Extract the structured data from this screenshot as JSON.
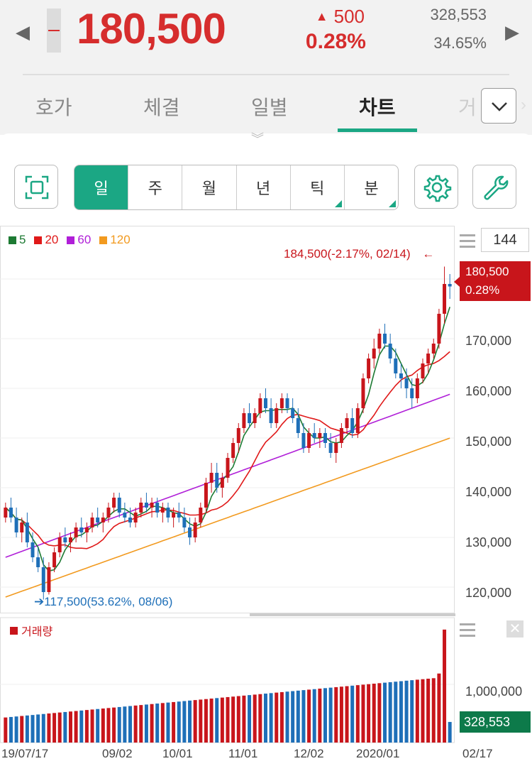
{
  "header": {
    "prev_arrow": "◀",
    "next_arrow": "▶",
    "price": "180,500",
    "change_arrow": "▲",
    "change": "500",
    "change_pct": "0.28%",
    "volume": "328,553",
    "volume_pct": "34.65%"
  },
  "tabs": [
    {
      "label": "호가"
    },
    {
      "label": "체결"
    },
    {
      "label": "일별"
    },
    {
      "label": "차트"
    },
    {
      "label": "거"
    }
  ],
  "active_tab": "차트",
  "toolbar": {
    "periods": [
      "일",
      "주",
      "월",
      "년",
      "틱",
      "분"
    ],
    "active_period": "일"
  },
  "legend": [
    {
      "label": "5",
      "color": "#1d7a33"
    },
    {
      "label": "20",
      "color": "#e01919"
    },
    {
      "label": "60",
      "color": "#b01fd8"
    },
    {
      "label": "120",
      "color": "#f29a1f"
    }
  ],
  "period_count": "144",
  "current_tag": {
    "price": "180,500",
    "pct": "0.28%"
  },
  "high_annotation": "184,500(-2.17%, 02/14)",
  "high_arrow": "←",
  "low_annotation": "117,500(53.62%, 08/06)",
  "low_arrow": "➔",
  "y_axis": [
    "170,000",
    "160,000",
    "150,000",
    "140,000",
    "130,000",
    "120,000"
  ],
  "volume_panel": {
    "legend": "거래량",
    "axis_label": "1,000,000",
    "tag": "328,553",
    "close": "✕"
  },
  "x_axis": [
    "19/07/17",
    "09/02",
    "10/01",
    "11/01",
    "12/02",
    "2020/01",
    "02/17"
  ],
  "colors": {
    "up": "#c8151b",
    "down": "#1e6fb8",
    "accent": "#1ba784",
    "volume_tag": "#0d7a4a"
  },
  "chart_data": {
    "type": "candlestick",
    "ylim": [
      115000,
      187000
    ],
    "candles": [
      [
        134000,
        137000,
        133000,
        136000
      ],
      [
        136000,
        138000,
        133000,
        134000
      ],
      [
        134000,
        136000,
        130000,
        131000
      ],
      [
        131000,
        134000,
        129000,
        133000
      ],
      [
        133000,
        135000,
        128000,
        129000
      ],
      [
        129000,
        131000,
        125000,
        126000
      ],
      [
        126000,
        128000,
        123000,
        124000
      ],
      [
        124000,
        126000,
        117500,
        119000
      ],
      [
        119000,
        125000,
        118500,
        124000
      ],
      [
        124000,
        128000,
        123000,
        127000
      ],
      [
        127000,
        131000,
        126000,
        130000
      ],
      [
        130000,
        132000,
        128000,
        129000
      ],
      [
        129000,
        131000,
        127000,
        130000
      ],
      [
        130000,
        133000,
        129000,
        132000
      ],
      [
        132000,
        134000,
        130000,
        131000
      ],
      [
        131000,
        133000,
        129000,
        132000
      ],
      [
        132000,
        135000,
        131000,
        134000
      ],
      [
        134000,
        136000,
        132000,
        133000
      ],
      [
        133000,
        135000,
        131000,
        134000
      ],
      [
        134000,
        137000,
        133000,
        136000
      ],
      [
        136000,
        139000,
        135000,
        138000
      ],
      [
        138000,
        139000,
        134000,
        135000
      ],
      [
        135000,
        137000,
        133000,
        134000
      ],
      [
        134000,
        136000,
        132000,
        133000
      ],
      [
        133000,
        136000,
        132000,
        135000
      ],
      [
        135000,
        138000,
        134000,
        137000
      ],
      [
        137000,
        139000,
        135000,
        136000
      ],
      [
        136000,
        138000,
        134000,
        137000
      ],
      [
        137000,
        138000,
        134000,
        135000
      ],
      [
        135000,
        137000,
        133000,
        136000
      ],
      [
        136000,
        137000,
        133000,
        134000
      ],
      [
        134000,
        136000,
        132000,
        135000
      ],
      [
        135000,
        137000,
        133000,
        134000
      ],
      [
        134000,
        136000,
        131000,
        132000
      ],
      [
        132000,
        134000,
        128500,
        130000
      ],
      [
        130000,
        134000,
        129000,
        133000
      ],
      [
        133000,
        137000,
        132000,
        136000
      ],
      [
        136000,
        142000,
        135000,
        141000
      ],
      [
        141000,
        145000,
        139000,
        143000
      ],
      [
        143000,
        145000,
        139000,
        140000
      ],
      [
        140000,
        143000,
        138000,
        142000
      ],
      [
        142000,
        147000,
        141000,
        146000
      ],
      [
        146000,
        150000,
        145000,
        149000
      ],
      [
        149000,
        153000,
        147000,
        152000
      ],
      [
        152000,
        156000,
        151000,
        155000
      ],
      [
        155000,
        157000,
        152000,
        153000
      ],
      [
        153000,
        156000,
        152000,
        155000
      ],
      [
        155000,
        159000,
        154000,
        158000
      ],
      [
        158000,
        160000,
        155000,
        156000
      ],
      [
        156000,
        158000,
        152000,
        153000
      ],
      [
        153000,
        157000,
        152000,
        156000
      ],
      [
        156000,
        159000,
        155000,
        158000
      ],
      [
        158000,
        159000,
        155000,
        156000
      ],
      [
        156000,
        158000,
        153000,
        154000
      ],
      [
        154000,
        156000,
        150000,
        151000
      ],
      [
        151000,
        153000,
        147000,
        148000
      ],
      [
        148000,
        152000,
        147000,
        151000
      ],
      [
        151000,
        153000,
        149000,
        150000
      ],
      [
        150000,
        152000,
        148000,
        151000
      ],
      [
        151000,
        152000,
        148000,
        149000
      ],
      [
        149000,
        151000,
        146000,
        147000
      ],
      [
        147000,
        150000,
        145000,
        149000
      ],
      [
        149000,
        153000,
        148000,
        152000
      ],
      [
        152000,
        155000,
        151000,
        154000
      ],
      [
        154000,
        156000,
        150000,
        151000
      ],
      [
        151000,
        157000,
        150000,
        156000
      ],
      [
        156000,
        163000,
        155000,
        162000
      ],
      [
        162000,
        167000,
        161000,
        166000
      ],
      [
        166000,
        170000,
        164000,
        168000
      ],
      [
        168000,
        172000,
        167000,
        171000
      ],
      [
        171000,
        173000,
        168000,
        169000
      ],
      [
        169000,
        171000,
        165000,
        166000
      ],
      [
        166000,
        168000,
        162000,
        163000
      ],
      [
        163000,
        165000,
        160000,
        162000
      ],
      [
        162000,
        164000,
        158000,
        160000
      ],
      [
        160000,
        162000,
        156000,
        158000
      ],
      [
        158000,
        163000,
        157000,
        162000
      ],
      [
        162000,
        166000,
        161000,
        165000
      ],
      [
        165000,
        168000,
        163000,
        167000
      ],
      [
        167000,
        170000,
        166000,
        169000
      ],
      [
        169000,
        176000,
        168000,
        175000
      ],
      [
        175000,
        184500,
        173000,
        181000
      ],
      [
        181000,
        183000,
        178000,
        180500
      ]
    ],
    "ma5_color": "#1d7a33",
    "ma20_color": "#e01919",
    "ma60_color": "#b01fd8",
    "ma120_color": "#f29a1f"
  }
}
